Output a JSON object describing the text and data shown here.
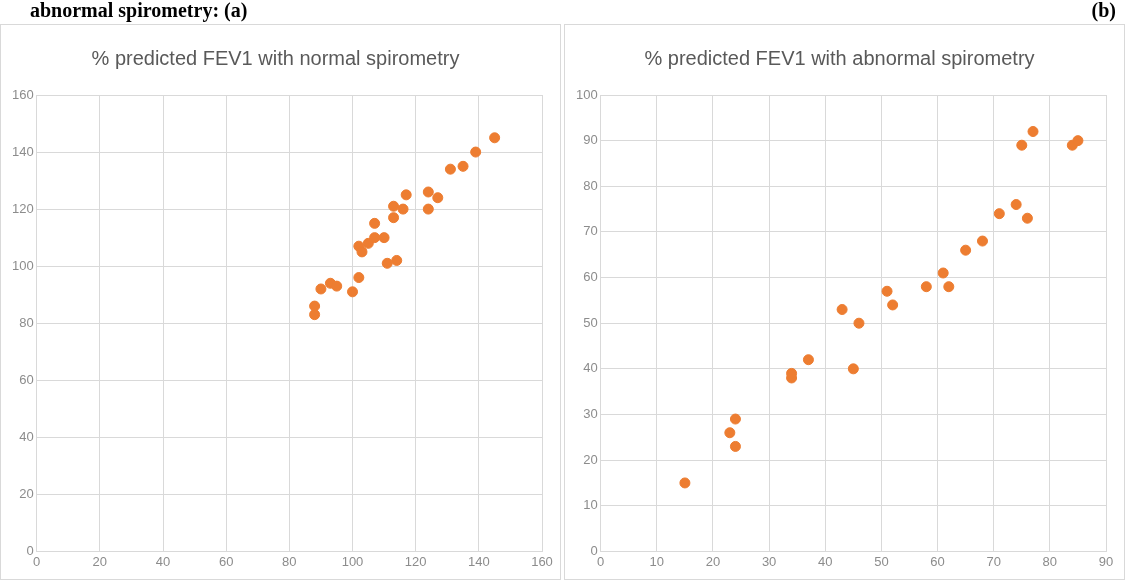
{
  "chart_data": [
    {
      "type": "scatter",
      "title": "% predicted FEV1 with normal spirometry",
      "annotations": [
        "abnormal spirometry:  (a)"
      ],
      "marker": "circle",
      "grid": true,
      "xlim": [
        0,
        160
      ],
      "xticks": [
        0,
        20,
        40,
        60,
        80,
        100,
        120,
        140,
        160
      ],
      "ylim": [
        0,
        160
      ],
      "yticks": [
        0,
        20,
        40,
        60,
        80,
        100,
        120,
        140,
        160
      ],
      "series": [
        {
          "color": "#ed7d31",
          "x": [
            88,
            88,
            90,
            93,
            95,
            100,
            102,
            102,
            103,
            105,
            107,
            107,
            109,
            110,
            111,
            114,
            113,
            113,
            116,
            117,
            124,
            124,
            127,
            131,
            135,
            139,
            145
          ],
          "values": [
            83,
            86,
            92,
            94,
            93,
            91,
            96,
            107,
            105,
            108,
            110,
            115,
            null,
            110,
            101,
            102,
            117,
            121,
            120,
            125,
            120,
            126,
            124,
            134,
            135,
            140,
            145
          ]
        }
      ]
    },
    {
      "type": "scatter",
      "title": "% predicted FEV1 with abnormal spirometry",
      "annotations": [
        "(b)"
      ],
      "marker": "circle",
      "grid": true,
      "xlim": [
        0,
        90
      ],
      "xticks": [
        0,
        10,
        20,
        30,
        40,
        50,
        60,
        70,
        80,
        90
      ],
      "ylim": [
        0,
        100
      ],
      "yticks": [
        0,
        10,
        20,
        30,
        40,
        50,
        60,
        70,
        80,
        90,
        100
      ],
      "series": [
        {
          "color": "#ed7d31",
          "x": [
            15,
            23,
            24,
            24,
            34,
            34,
            37,
            43,
            45,
            46,
            51,
            52,
            58,
            61,
            62,
            65,
            68,
            71,
            74,
            76,
            75,
            77,
            84,
            85
          ],
          "values": [
            15,
            26,
            29,
            23,
            38,
            39,
            42,
            53,
            40,
            50,
            57,
            54,
            58,
            61,
            58,
            66,
            68,
            74,
            76,
            73,
            89,
            92,
            89,
            90
          ]
        }
      ]
    }
  ]
}
